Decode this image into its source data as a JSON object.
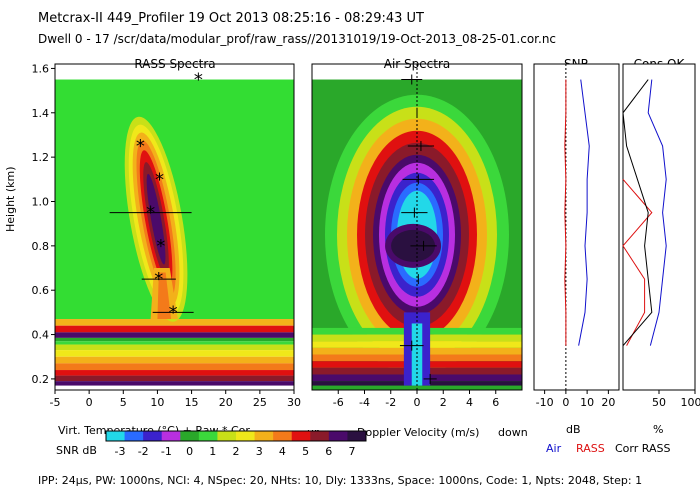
{
  "header": {
    "line1": "Metcrax-II  449_Profiler  19 Oct 2013  08:25:16 - 08:29:43 UT",
    "line2": "Dwell  0 - 17   /scr/data/modular_prof/raw_rass//20131019/19-Oct-2013_08-25-01.cor.nc"
  },
  "footer": "IPP: 24µs, PW: 1000ns, NCI: 4, NSpec: 20, NHts: 10, Dly: 1333ns, Space: 1000ns, Code: 1, Npts: 2048, Step: 1",
  "colors": {
    "air_line": "#1010cc",
    "rass_line": "#dd1010",
    "scale": [
      "#22d8e8",
      "#2a6bff",
      "#3b22cc",
      "#b82fe0",
      "#2aa82a",
      "#3bd83b",
      "#c8e018",
      "#f0e81a",
      "#f3b11a",
      "#f37a1a",
      "#e01010",
      "#8a1a2a",
      "#4a0a6a",
      "#2a1040"
    ]
  },
  "chart_data": [
    {
      "type": "heatmap",
      "title": "RASS Spectra",
      "xlabel": "Virt. Temperature (°C)  + Raw  * Cor",
      "ylabel": "Height (km)",
      "xlim": [
        -5,
        30
      ],
      "ylim": [
        0.15,
        1.62
      ],
      "xticks": [
        -5,
        0,
        5,
        10,
        15,
        20,
        25,
        30
      ],
      "yticks": [
        0.2,
        0.4,
        0.6,
        0.8,
        1.0,
        1.2,
        1.4,
        1.6
      ],
      "ytick_labels": [
        "0.2",
        "0.4",
        "0.6",
        "0.8",
        "1.0",
        "1.2",
        "1.4",
        "1.6"
      ],
      "points": [
        {
          "height": 1.55,
          "temp": 16.0,
          "err": 0.0
        },
        {
          "height": 1.25,
          "temp": 7.5,
          "err": 0.0
        },
        {
          "height": 1.1,
          "temp": 10.3,
          "err": 0.0
        },
        {
          "height": 0.95,
          "temp": 9.0,
          "err": 6.0
        },
        {
          "height": 0.8,
          "temp": 10.5,
          "err": 0.0
        },
        {
          "height": 0.65,
          "temp": 10.2,
          "err": 2.5
        },
        {
          "height": 0.5,
          "temp": 12.3,
          "err": 3.0
        }
      ]
    },
    {
      "type": "heatmap",
      "title": "Air Spectra",
      "xlabel": "Doppler Velocity (m/s)",
      "xlabel_left": "up",
      "xlabel_right": "down",
      "xlim": [
        -8,
        8
      ],
      "xticks": [
        -6,
        -4,
        -2,
        0,
        2,
        4,
        6
      ],
      "points": [
        {
          "height": 1.55,
          "vel": -0.4,
          "err": 0.8
        },
        {
          "height": 1.4,
          "vel": 0.0,
          "err": 0.0
        },
        {
          "height": 1.25,
          "vel": 0.3,
          "err": 1.0
        },
        {
          "height": 1.1,
          "vel": 0.1,
          "err": 1.2
        },
        {
          "height": 0.95,
          "vel": -0.2,
          "err": 1.0
        },
        {
          "height": 0.8,
          "vel": 0.5,
          "err": 1.0
        },
        {
          "height": 0.65,
          "vel": 0.1,
          "err": 0.0
        },
        {
          "height": 0.35,
          "vel": -0.4,
          "err": 0.9
        },
        {
          "height": 0.2,
          "vel": 1.0,
          "err": 0.5
        }
      ]
    },
    {
      "type": "line",
      "title": "SNR",
      "xlabel": "dB",
      "xlim": [
        -15,
        25
      ],
      "xticks": [
        -10,
        0,
        10,
        20
      ],
      "xtick_labels": [
        "-10",
        "0",
        "10",
        "20"
      ],
      "series": [
        {
          "name": "Air",
          "values": [
            [
              0.35,
              6
            ],
            [
              0.5,
              9
            ],
            [
              0.65,
              10
            ],
            [
              0.8,
              9
            ],
            [
              0.95,
              10
            ],
            [
              1.1,
              10
            ],
            [
              1.25,
              11
            ],
            [
              1.4,
              9
            ],
            [
              1.55,
              7
            ]
          ]
        },
        {
          "name": "RASS",
          "values": [
            [
              0.35,
              0
            ],
            [
              0.5,
              0
            ],
            [
              0.65,
              -0.5
            ],
            [
              0.8,
              0
            ],
            [
              0.95,
              -0.5
            ],
            [
              1.1,
              0
            ],
            [
              1.25,
              -0.5
            ],
            [
              1.4,
              0
            ],
            [
              1.55,
              0
            ]
          ]
        }
      ]
    },
    {
      "type": "line",
      "title": "Cons OK",
      "xlabel": "%",
      "xlim": [
        0,
        100
      ],
      "xticks": [
        50,
        100
      ],
      "xtick_labels": [
        "50",
        "100"
      ],
      "series": [
        {
          "name": "Air",
          "values": [
            [
              0.35,
              38
            ],
            [
              0.5,
              50
            ],
            [
              0.65,
              55
            ],
            [
              0.8,
              60
            ],
            [
              0.95,
              55
            ],
            [
              1.1,
              60
            ],
            [
              1.25,
              55
            ],
            [
              1.4,
              35
            ],
            [
              1.55,
              40
            ]
          ]
        },
        {
          "name": "RASS",
          "values": [
            [
              0.35,
              5
            ],
            [
              0.5,
              30
            ],
            [
              0.65,
              30
            ],
            [
              0.8,
              0
            ],
            [
              0.95,
              40
            ],
            [
              1.1,
              0
            ]
          ]
        },
        {
          "name": "Corr RASS",
          "values": [
            [
              0.35,
              0
            ],
            [
              0.5,
              40
            ],
            [
              0.65,
              35
            ],
            [
              0.8,
              30
            ],
            [
              0.95,
              35
            ],
            [
              1.1,
              20
            ],
            [
              1.25,
              5
            ],
            [
              1.4,
              0
            ],
            [
              1.55,
              35
            ]
          ]
        }
      ]
    }
  ],
  "colorbar": {
    "label": "SNR dB",
    "ticks": [
      "-3",
      "-2",
      "-1",
      "0",
      "1",
      "2",
      "3",
      "4",
      "5",
      "6",
      "7"
    ]
  },
  "legend": {
    "air": "Air",
    "rass": "RASS",
    "corr": "Corr RASS"
  }
}
